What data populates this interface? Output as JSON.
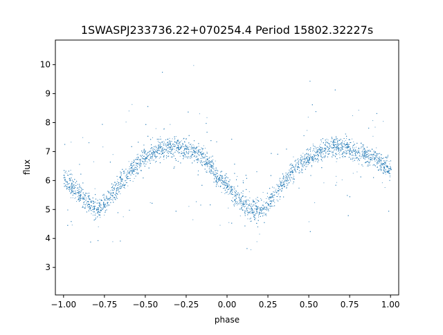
{
  "chart_data": {
    "type": "scatter",
    "title": "1SWASPJ233736.22+070254.4 Period 15802.32227s",
    "xlabel": "phase",
    "ylabel": "flux",
    "xlim": [
      -1.05,
      1.05
    ],
    "ylim": [
      2.05,
      10.85
    ],
    "xticks": [
      -1.0,
      -0.75,
      -0.5,
      -0.25,
      0.0,
      0.25,
      0.5,
      0.75,
      1.0
    ],
    "xtick_labels": [
      "−1.00",
      "−0.75",
      "−0.50",
      "−0.25",
      "0.00",
      "0.25",
      "0.50",
      "0.75",
      "1.00"
    ],
    "yticks": [
      3,
      4,
      5,
      6,
      7,
      8,
      9,
      10
    ],
    "ytick_labels": [
      "3",
      "4",
      "5",
      "6",
      "7",
      "8",
      "9",
      "10"
    ],
    "grid": false,
    "marker_color": "#1f77b4",
    "series": [
      {
        "x": [
          -1.0,
          -0.95,
          -0.9,
          -0.85,
          -0.8,
          -0.75,
          -0.7,
          -0.65,
          -0.6,
          -0.55,
          -0.5,
          -0.45,
          -0.4,
          -0.35,
          -0.3,
          -0.25,
          -0.2,
          -0.15,
          -0.1,
          -0.05,
          0.0,
          0.05,
          0.1,
          0.15,
          0.2,
          0.25,
          0.3,
          0.35,
          0.4,
          0.45,
          0.5,
          0.55,
          0.6,
          0.65,
          0.7,
          0.75,
          0.8,
          0.85,
          0.9,
          0.95,
          1.0
        ],
        "y": [
          6.2,
          5.8,
          5.5,
          5.2,
          5.0,
          5.2,
          5.6,
          6.0,
          6.3,
          6.6,
          6.8,
          7.0,
          7.1,
          7.15,
          7.15,
          7.1,
          7.0,
          6.8,
          6.5,
          6.1,
          5.8,
          5.5,
          5.2,
          5.0,
          5.0,
          5.2,
          5.6,
          6.0,
          6.3,
          6.6,
          6.8,
          7.0,
          7.1,
          7.15,
          7.15,
          7.1,
          7.0,
          6.9,
          6.8,
          6.6,
          6.4
        ]
      }
    ]
  }
}
